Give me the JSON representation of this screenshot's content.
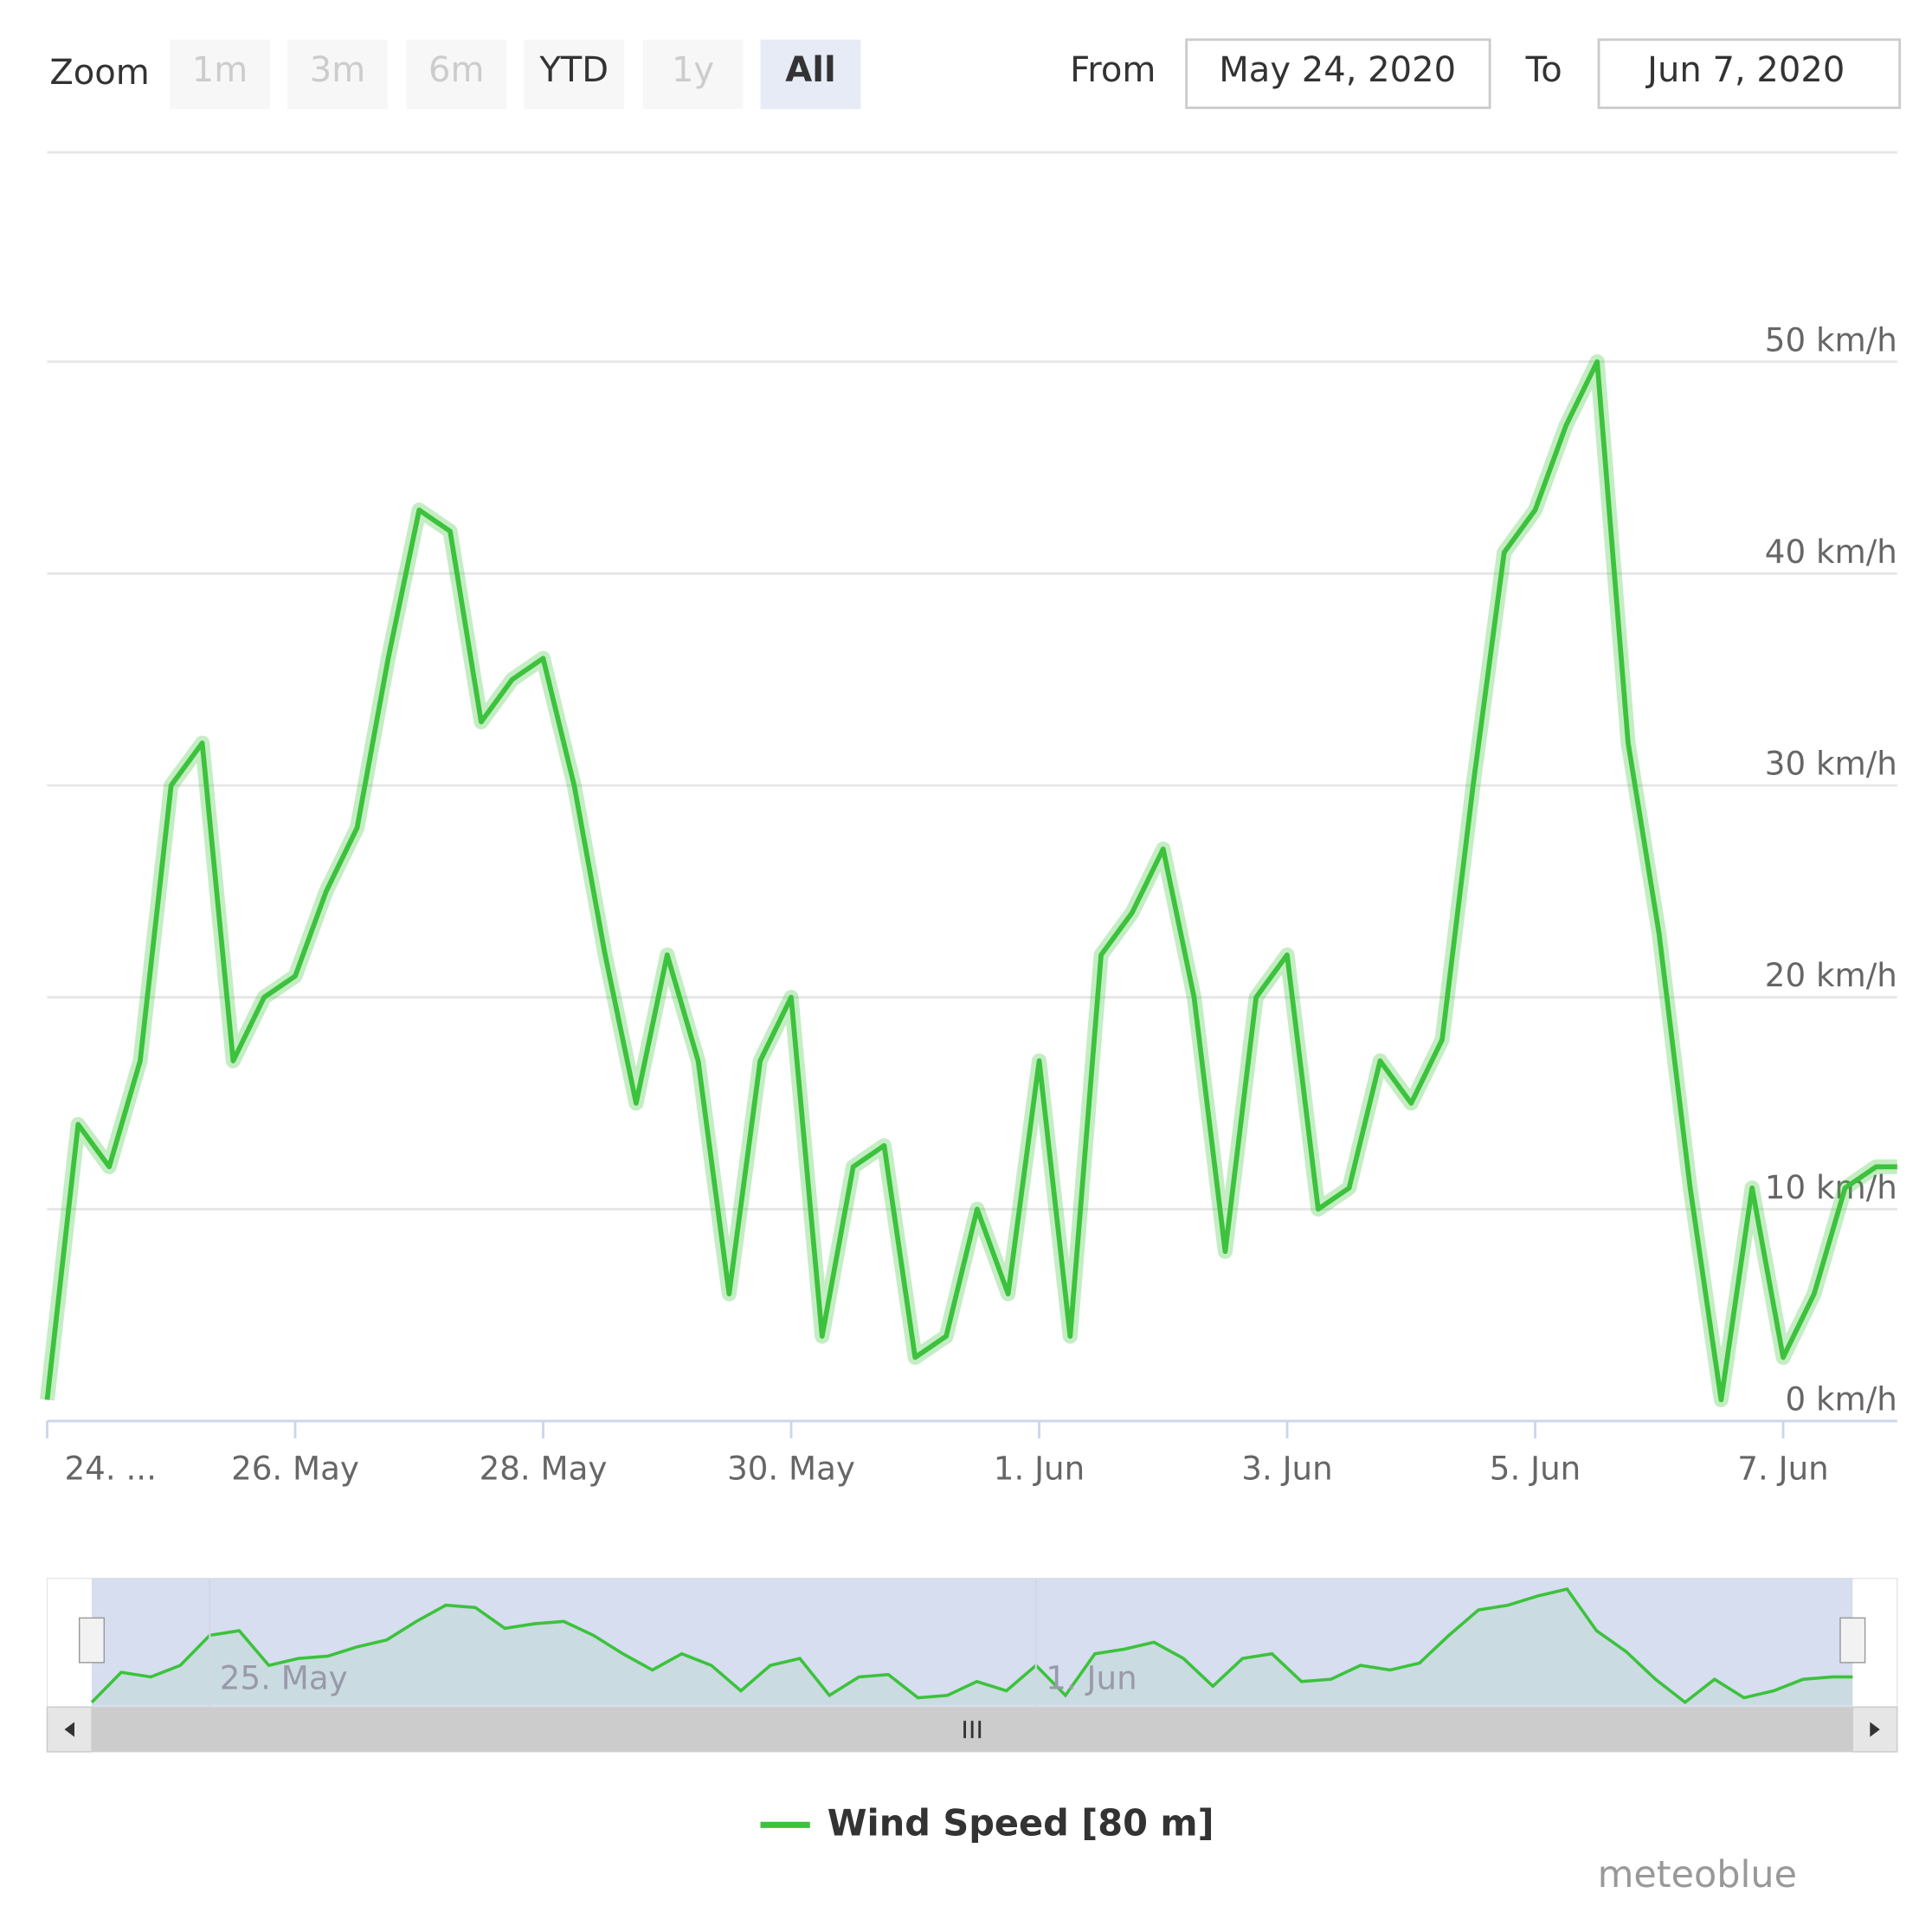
{
  "range_selector": {
    "label": "Zoom",
    "buttons": [
      {
        "text": "1m",
        "state": "disabled"
      },
      {
        "text": "3m",
        "state": "disabled"
      },
      {
        "text": "6m",
        "state": "disabled"
      },
      {
        "text": "YTD",
        "state": "normal"
      },
      {
        "text": "1y",
        "state": "disabled"
      },
      {
        "text": "All",
        "state": "selected"
      }
    ]
  },
  "input": {
    "from_label": "From",
    "from": "May 24, 2020",
    "to_label": "To",
    "to": "Jun 7, 2020"
  },
  "chart_data": {
    "type": "line",
    "x": [
      0,
      0.25,
      0.5,
      0.75,
      1,
      1.25,
      1.5,
      1.75,
      2,
      2.25,
      2.5,
      2.75,
      3,
      3.25,
      3.5,
      3.75,
      4,
      4.25,
      4.5,
      4.75,
      5,
      5.25,
      5.5,
      5.75,
      6,
      6.25,
      6.5,
      6.75,
      7,
      7.25,
      7.5,
      7.75,
      8,
      8.25,
      8.5,
      8.75,
      9,
      9.25,
      9.5,
      9.75,
      10,
      10.25,
      10.5,
      10.75,
      11,
      11.25,
      11.5,
      11.75,
      12,
      12.25,
      12.5,
      12.75,
      13,
      13.25,
      13.5,
      13.75,
      14,
      14.25,
      14.5,
      14.75,
      14.92
    ],
    "series": [
      {
        "name": "Wind Speed [80 m]",
        "color": "#3cc23c",
        "values": [
          1,
          14,
          12,
          17,
          30,
          32,
          17,
          20,
          21,
          25,
          28,
          36,
          43,
          42,
          33,
          35,
          36,
          30,
          22,
          15,
          22,
          17,
          6,
          17,
          20,
          4,
          12,
          13,
          3,
          4,
          10,
          6,
          17,
          4,
          22,
          24,
          27,
          20,
          8,
          20,
          22,
          10,
          11,
          17,
          15,
          18,
          30,
          41,
          43,
          47,
          50,
          32,
          23,
          11,
          1,
          11,
          3,
          6,
          11,
          12,
          12
        ]
      }
    ],
    "xlim": [
      0,
      14.92
    ],
    "xticks": [
      {
        "value": 0,
        "label": "24. ..."
      },
      {
        "value": 2,
        "label": "26. May"
      },
      {
        "value": 4,
        "label": "28. May"
      },
      {
        "value": 6,
        "label": "30. May"
      },
      {
        "value": 8,
        "label": "1. Jun"
      },
      {
        "value": 10,
        "label": "3. Jun"
      },
      {
        "value": 12,
        "label": "5. Jun"
      },
      {
        "value": 14,
        "label": "7. Jun"
      }
    ],
    "ylim": [
      0,
      60
    ],
    "yticks": [
      {
        "value": 0,
        "label": "0 km/h"
      },
      {
        "value": 10,
        "label": "10 km/h"
      },
      {
        "value": 20,
        "label": "20 km/h"
      },
      {
        "value": 30,
        "label": "30 km/h"
      },
      {
        "value": 40,
        "label": "40 km/h"
      },
      {
        "value": 50,
        "label": "50 km/h"
      }
    ],
    "grid": true,
    "navigator_xticks": [
      {
        "value": 1,
        "label": "25. May"
      },
      {
        "value": 8,
        "label": "1. Jun"
      }
    ],
    "legend": "bottom",
    "credit": "meteoblue"
  }
}
